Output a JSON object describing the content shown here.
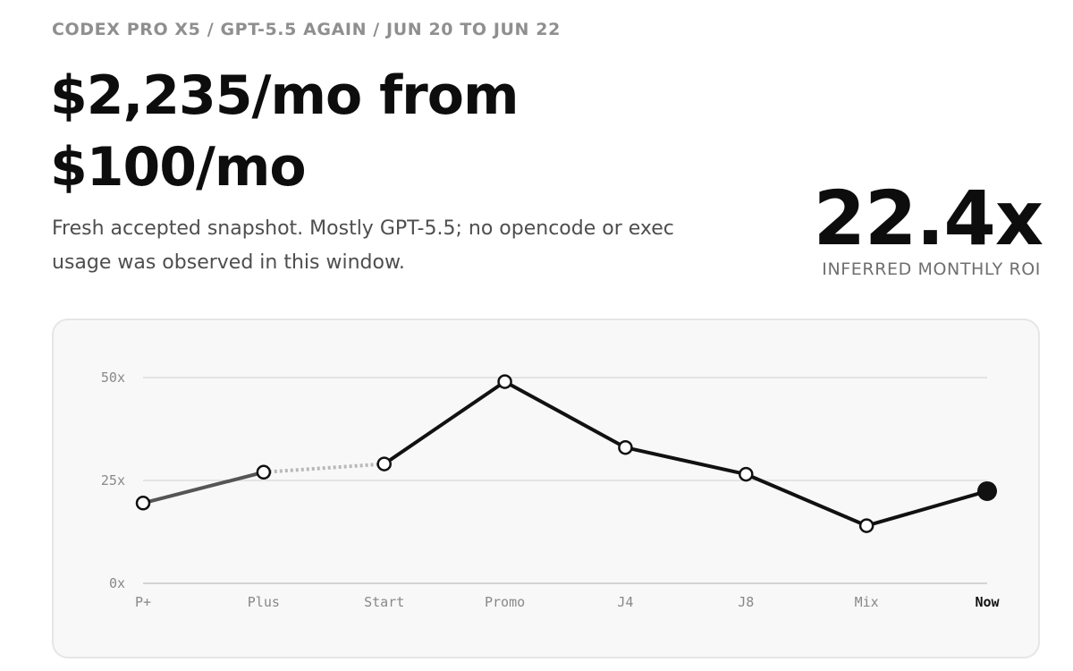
{
  "header": {
    "kicker": "CODEX PRO X5 / GPT-5.5 AGAIN / JUN 20 TO JUN 22",
    "headline": "$2,235/mo from $100/mo",
    "description": "Fresh accepted snapshot. Mostly GPT-5.5; no opencode or exec usage was observed in this window."
  },
  "roi": {
    "value": "22.4x",
    "label": "INFERRED MONTHLY ROI"
  },
  "colors": {
    "line": "#111111",
    "early_line": "#555555",
    "gap_line": "#b8b8b8",
    "grid": "#dddddd",
    "card_bg": "#f8f8f8"
  },
  "chart_data": {
    "type": "line",
    "categories": [
      "P+",
      "Plus",
      "Start",
      "Promo",
      "J4",
      "J8",
      "Mix",
      "Now"
    ],
    "values": [
      19.5,
      27,
      29,
      49,
      33,
      26.5,
      14,
      22.4
    ],
    "y_ticks": [
      "0x",
      "25x",
      "50x"
    ],
    "y_tick_values": [
      0,
      25,
      50
    ],
    "ylim": [
      0,
      50
    ],
    "grid": true,
    "segments": [
      {
        "from": 0,
        "to": 1,
        "style": "solid-gray"
      },
      {
        "from": 1,
        "to": 2,
        "style": "dotted"
      },
      {
        "from": 2,
        "to": 7,
        "style": "solid-black"
      }
    ],
    "highlight_index": 7
  }
}
